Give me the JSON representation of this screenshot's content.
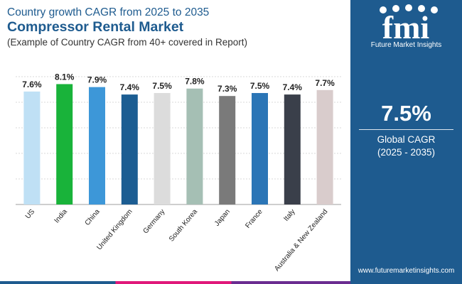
{
  "header": {
    "subtitle_top": "Country growth CAGR from 2025 to 2035",
    "title": "Compressor Rental Market",
    "subtitle": "(Example of Country CAGR from 40+ covered in Report)"
  },
  "brand": {
    "logo_text": "fmi",
    "tagline": "Future Market Insights",
    "website": "www.futuremarketinsights.com"
  },
  "stat": {
    "value": "7.5%",
    "label": "Global CAGR",
    "period": "(2025 - 2035)"
  },
  "colors": {
    "brand_blue": "#1e5b8f",
    "grid": "#d9d9d9"
  },
  "chart_data": {
    "type": "bar",
    "categories": [
      "US",
      "India",
      "China",
      "United Kingdom",
      "Germany",
      "South Korea",
      "Japan",
      "France",
      "Italy",
      "Australia & New Zealand"
    ],
    "values": [
      7.6,
      8.1,
      7.9,
      7.4,
      7.5,
      7.8,
      7.3,
      7.5,
      7.4,
      7.7
    ],
    "data_labels": [
      "7.6%",
      "8.1%",
      "7.9%",
      "7.4%",
      "7.5%",
      "7.8%",
      "7.3%",
      "7.5%",
      "7.4%",
      "7.7%"
    ],
    "colors": [
      "#bfe0f5",
      "#19b33a",
      "#3d97d8",
      "#1c5d92",
      "#dcdcdc",
      "#a5bfb4",
      "#7a7a7a",
      "#2b75b6",
      "#3a3f4a",
      "#d9cccc"
    ],
    "ylim": [
      0,
      8.6
    ],
    "grid": true,
    "legend": "none"
  }
}
